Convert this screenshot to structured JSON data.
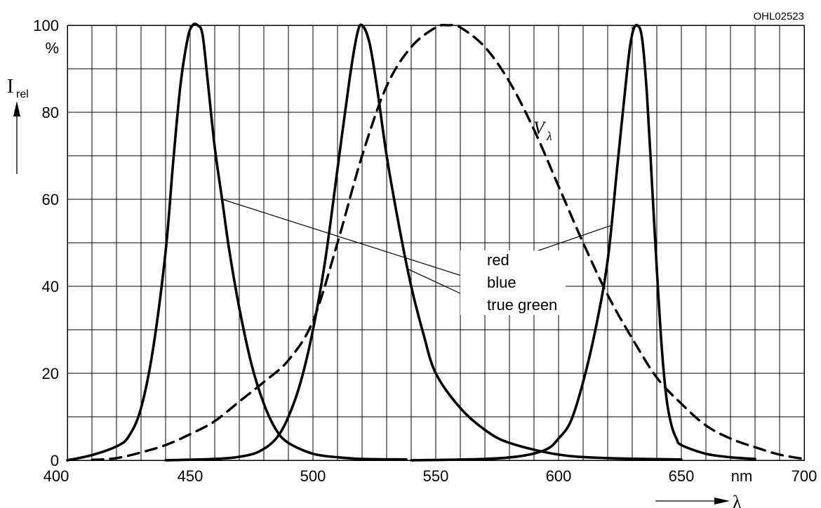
{
  "figure_code": "OHL02523",
  "chart_data": {
    "type": "line",
    "xlabel_unit": "nm",
    "xlabel_symbol": "λ",
    "ylabel_main": "I",
    "ylabel_sub": "rel",
    "y_unit": "%",
    "xlim": [
      400,
      700
    ],
    "ylim": [
      0,
      100
    ],
    "x_ticks": [
      400,
      450,
      500,
      550,
      600,
      650,
      700
    ],
    "y_ticks": [
      0,
      20,
      40,
      60,
      80,
      100
    ],
    "x_tick_labels": [
      "400",
      "450",
      "500",
      "550",
      "600",
      "650",
      "700"
    ],
    "y_tick_labels": [
      "0",
      "20",
      "40",
      "60",
      "80",
      "100"
    ],
    "grid": true,
    "x_grid_step": 10,
    "y_grid_step": 10,
    "series": [
      {
        "name": "blue",
        "style": "solid",
        "x": [
          400,
          410,
          420,
          425,
          430,
          435,
          440,
          443,
          446,
          449,
          451,
          453,
          455,
          457,
          460,
          463,
          466,
          470,
          475,
          480,
          485,
          490,
          500,
          510,
          520,
          538
        ],
        "y": [
          0,
          1.2,
          3.2,
          5.5,
          12,
          26,
          48,
          68,
          86,
          97,
          100,
          100,
          98,
          88,
          72,
          60,
          48,
          35,
          22,
          13,
          7,
          4,
          1.5,
          0.7,
          0.3,
          0.2
        ]
      },
      {
        "name": "true green",
        "style": "solid",
        "x": [
          440,
          460,
          470,
          478,
          485,
          490,
          495,
          500,
          505,
          510,
          515,
          518,
          520,
          523,
          526,
          530,
          535,
          540,
          545,
          550,
          560,
          570,
          580,
          600,
          620,
          650
        ],
        "y": [
          0,
          0.3,
          0.8,
          2,
          5,
          10,
          18,
          30,
          46,
          67,
          88,
          98,
          100,
          96,
          86,
          70,
          54,
          40,
          29,
          20,
          12,
          7,
          4,
          1.3,
          0.5,
          0.2
        ]
      },
      {
        "name": "red",
        "style": "solid",
        "x": [
          540,
          570,
          585,
          595,
          600,
          605,
          610,
          615,
          620,
          624,
          628,
          630,
          632,
          634,
          636,
          638,
          640,
          642,
          644,
          646,
          648,
          650,
          660,
          670,
          680
        ],
        "y": [
          0,
          0.3,
          1,
          2.5,
          5,
          9,
          18,
          30,
          46,
          68,
          90,
          98,
          100,
          97,
          84,
          64,
          44,
          26,
          14,
          8,
          5,
          3.5,
          1.5,
          0.7,
          0.3
        ]
      },
      {
        "name": "Vλ",
        "style": "dashed",
        "x": [
          410,
          420,
          430,
          440,
          450,
          460,
          470,
          480,
          490,
          500,
          510,
          520,
          530,
          540,
          550,
          555,
          560,
          570,
          580,
          590,
          600,
          610,
          620,
          630,
          640,
          650,
          660,
          670,
          680,
          690,
          700
        ],
        "y": [
          0.1,
          0.5,
          1.8,
          3.5,
          6,
          9,
          13.5,
          18,
          23,
          32,
          50,
          70,
          86,
          95,
          99.5,
          100,
          99.5,
          95,
          87,
          76,
          63,
          50,
          38,
          28,
          19,
          13,
          8,
          5,
          3,
          1.3,
          0.3
        ]
      }
    ],
    "annotations": {
      "legend_labels": [
        "red",
        "blue",
        "true green"
      ],
      "v_lambda_main": "V",
      "v_lambda_sub": "λ"
    }
  }
}
